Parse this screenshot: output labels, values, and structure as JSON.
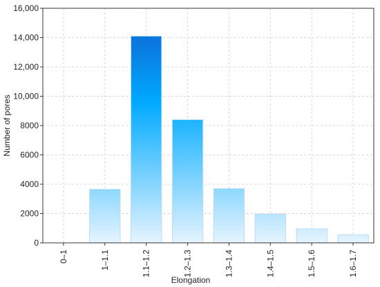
{
  "chart_data": {
    "type": "bar",
    "x_label": "Elongation",
    "y_label": "Number of pores",
    "categories": [
      "0–1",
      "1–1.1",
      "1.1–1.2",
      "1.2–1.3",
      "1.3–1.4",
      "1.4–1.5",
      "1.5–1.6",
      "1.6–1.7"
    ],
    "values": [
      0,
      3650,
      14100,
      8400,
      3700,
      1950,
      950,
      550
    ],
    "gradient_colors": [
      "#e6f4ff",
      "#00aaff",
      "#0a78de"
    ],
    "ylim": [
      0,
      16000
    ],
    "yticks": [
      0,
      2000,
      4000,
      6000,
      8000,
      {
        "value": 10000,
        "label": "10,000"
      },
      {
        "value": 12000,
        "label": "12,000"
      },
      {
        "value": 14000,
        "label": "14,000"
      },
      {
        "value": 16000,
        "label": "16,000"
      }
    ],
    "grid": true
  }
}
